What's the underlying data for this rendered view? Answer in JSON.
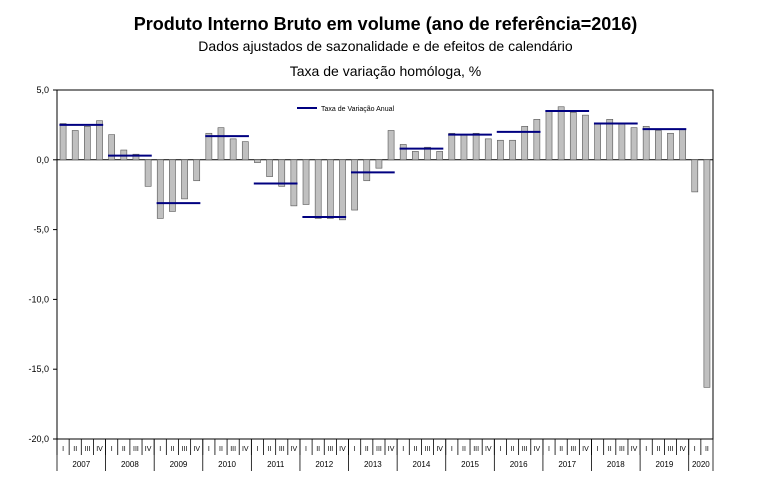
{
  "chart_data": {
    "type": "bar",
    "title": "Produto Interno Bruto em volume (ano de referência=2016)",
    "subtitle": "Dados ajustados de sazonalidade e de efeitos de calendário",
    "ylabel": "Taxa de variação homóloga, %",
    "ylim": [
      -20,
      5
    ],
    "yticks": [
      "5,0",
      "0,0",
      "-5,0",
      "-10,0",
      "-15,0",
      "-20,0"
    ],
    "legend_position": "top-left",
    "grid": false,
    "quarter_labels": [
      "I",
      "II",
      "III",
      "IV"
    ],
    "years": [
      "2007",
      "2008",
      "2009",
      "2010",
      "2011",
      "2012",
      "2013",
      "2014",
      "2015",
      "2016",
      "2017",
      "2018",
      "2019",
      "2020"
    ],
    "series": [
      {
        "kind": "bar",
        "color": "#c0c0c0",
        "values": [
          2.6,
          2.1,
          2.4,
          2.8,
          1.8,
          0.7,
          0.4,
          -1.9,
          -4.2,
          -3.7,
          -2.8,
          -1.5,
          1.9,
          2.3,
          1.5,
          1.3,
          -0.2,
          -1.2,
          -1.9,
          -3.3,
          -3.2,
          -4.2,
          -4.2,
          -4.3,
          -3.6,
          -1.5,
          -0.6,
          2.1,
          1.1,
          0.6,
          0.9,
          0.6,
          1.9,
          1.8,
          1.9,
          1.5,
          1.4,
          1.4,
          2.4,
          2.9,
          3.5,
          3.8,
          3.4,
          3.2,
          2.6,
          2.9,
          2.6,
          2.3,
          2.4,
          2.1,
          1.9,
          2.2,
          -2.3,
          -16.3
        ]
      },
      {
        "name": "Taxa de Variação Anual",
        "kind": "step",
        "color": "#000080",
        "values": [
          2.5,
          0.3,
          -3.1,
          1.7,
          -1.7,
          -4.1,
          -0.9,
          0.8,
          1.8,
          2.0,
          3.5,
          2.6,
          2.2
        ]
      }
    ]
  }
}
